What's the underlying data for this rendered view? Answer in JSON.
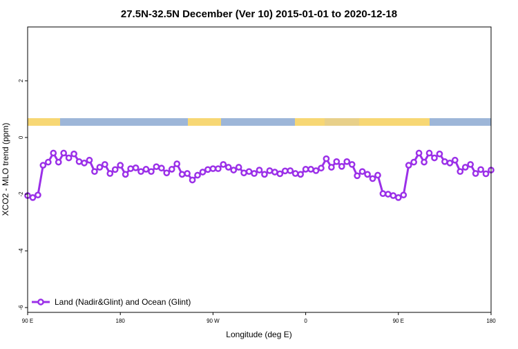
{
  "chart_data": {
    "type": "line",
    "title": "27.5N-32.5N December (Ver 10)   2015-01-01 to 2020-12-18",
    "x_label": "Longitude (deg E)",
    "y_label": "XCO2 - MLO trend (ppm)",
    "x": [
      90,
      95,
      100,
      105,
      110,
      115,
      120,
      125,
      130,
      135,
      140,
      145,
      150,
      155,
      160,
      165,
      170,
      175,
      180,
      185,
      190,
      195,
      200,
      205,
      210,
      215,
      220,
      225,
      230,
      235,
      240,
      245,
      250,
      255,
      260,
      265,
      270,
      275,
      280,
      285,
      290,
      295,
      300,
      305,
      310,
      315,
      320,
      325,
      330,
      335,
      340,
      345,
      350,
      355,
      360,
      365,
      370,
      375,
      380,
      385,
      390,
      395,
      400,
      405,
      410,
      415,
      420,
      425,
      430,
      435,
      440,
      445,
      450,
      455,
      460,
      465,
      470,
      475,
      480,
      485,
      490,
      495,
      500,
      505,
      510,
      515,
      520,
      525,
      530,
      535,
      540
    ],
    "series": [
      {
        "name": "Land (Nadir&Glint) and Ocean (Glint)",
        "color": "#9b30e8",
        "values": [
          -2.05,
          -2.12,
          -2.03,
          -0.98,
          -0.87,
          -0.55,
          -0.87,
          -0.55,
          -0.72,
          -0.58,
          -0.85,
          -0.9,
          -0.8,
          -1.2,
          -1.05,
          -0.95,
          -1.27,
          -1.13,
          -0.98,
          -1.3,
          -1.1,
          -1.07,
          -1.2,
          -1.12,
          -1.2,
          -1.03,
          -1.08,
          -1.25,
          -1.12,
          -0.93,
          -1.3,
          -1.27,
          -1.5,
          -1.33,
          -1.22,
          -1.13,
          -1.1,
          -1.1,
          -0.95,
          -1.05,
          -1.15,
          -1.05,
          -1.25,
          -1.2,
          -1.27,
          -1.15,
          -1.3,
          -1.17,
          -1.22,
          -1.28,
          -1.18,
          -1.17,
          -1.27,
          -1.3,
          -1.12,
          -1.12,
          -1.17,
          -1.08,
          -0.75,
          -1.05,
          -0.85,
          -1.02,
          -0.85,
          -0.95,
          -1.35,
          -1.2,
          -1.3,
          -1.45,
          -1.33,
          -1.98,
          -2.0,
          -2.05,
          -2.12,
          -2.03,
          -0.98,
          -0.87,
          -0.55,
          -0.87,
          -0.55,
          -0.72,
          -0.58,
          -0.85,
          -0.9,
          -0.8,
          -1.2,
          -1.05,
          -0.95,
          -1.27,
          -1.13,
          -1.28,
          -1.15
        ]
      }
    ],
    "xlim": [
      90,
      540
    ],
    "xticks": [
      {
        "value": 90,
        "label": "90 E"
      },
      180,
      {
        "value": 270,
        "label": "90 W"
      },
      {
        "value": 360,
        "label": "0"
      },
      {
        "value": 450,
        "label": "90 E"
      },
      {
        "value": 540,
        "label": "180"
      }
    ],
    "ylim": [
      -6.17,
      3.9
    ],
    "yticks": [
      -6,
      -4,
      -2,
      0,
      2
    ],
    "legend": "bottom-left"
  }
}
